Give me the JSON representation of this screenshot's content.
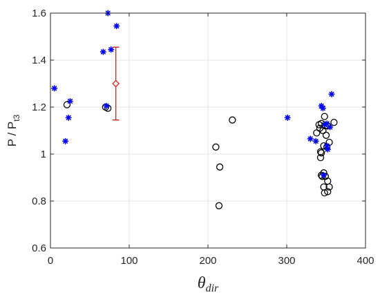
{
  "chart_data": {
    "type": "scatter",
    "title": "",
    "xlabel_symbol": "θ",
    "xlabel_sub": "dir",
    "ylabel_main": "P / P",
    "ylabel_sub": "t3",
    "xlim": [
      0,
      400
    ],
    "ylim": [
      0.6,
      1.6
    ],
    "xticks": [
      0,
      100,
      200,
      300,
      400
    ],
    "yticks": [
      0.6,
      0.8,
      1,
      1.2,
      1.4,
      1.6
    ],
    "xtick_labels": [
      "0",
      "100",
      "200",
      "300",
      "400"
    ],
    "ytick_labels": [
      "0.6",
      "0.8",
      "1",
      "1.2",
      "1.4",
      "1.6"
    ],
    "grid": true,
    "colors": {
      "circles": "#000000",
      "stars": "#0000ff",
      "mean": "#d62728",
      "grid": "#e6e6e6",
      "axis": "#262626"
    },
    "series": [
      {
        "marker": "circle",
        "points": [
          [
            21,
            1.21
          ],
          [
            70,
            1.2
          ],
          [
            73,
            1.195
          ],
          [
            210,
            1.03
          ],
          [
            215,
            0.945
          ],
          [
            214,
            0.78
          ],
          [
            231,
            1.145
          ],
          [
            338,
            1.09
          ],
          [
            341,
            1.125
          ],
          [
            342,
            1.11
          ],
          [
            344,
            1.13
          ],
          [
            346,
            1.1
          ],
          [
            348,
            1.16
          ],
          [
            349,
            1.12
          ],
          [
            350,
            1.08
          ],
          [
            352,
            1.12
          ],
          [
            360,
            1.135
          ],
          [
            347,
            1.035
          ],
          [
            351,
            1.03
          ],
          [
            354,
            1.05
          ],
          [
            343,
            1.01
          ],
          [
            344,
            1.005
          ],
          [
            343,
            0.985
          ],
          [
            344,
            0.91
          ],
          [
            345,
            0.905
          ],
          [
            347,
            0.92
          ],
          [
            349,
            0.905
          ],
          [
            352,
            0.885
          ],
          [
            347,
            0.86
          ],
          [
            354,
            0.86
          ],
          [
            348,
            0.835
          ],
          [
            352,
            0.84
          ]
        ]
      },
      {
        "marker": "star",
        "points": [
          [
            5,
            1.28
          ],
          [
            19,
            1.055
          ],
          [
            23,
            1.155
          ],
          [
            25,
            1.225
          ],
          [
            67,
            1.435
          ],
          [
            73,
            1.6
          ],
          [
            77,
            1.445
          ],
          [
            84,
            1.545
          ],
          [
            71,
            1.205
          ],
          [
            301,
            1.155
          ],
          [
            330,
            1.065
          ],
          [
            337,
            1.055
          ],
          [
            344,
            1.205
          ],
          [
            346,
            1.195
          ],
          [
            348,
            1.125
          ],
          [
            351,
            1.13
          ],
          [
            355,
            1.115
          ],
          [
            357,
            1.255
          ],
          [
            352,
            1.02
          ],
          [
            347,
            0.91
          ],
          [
            351,
            1.035
          ]
        ]
      }
    ],
    "mean_marker": {
      "marker": "diamond",
      "x": 83,
      "y": 1.3,
      "error_low": 1.145,
      "error_high": 1.455
    }
  }
}
